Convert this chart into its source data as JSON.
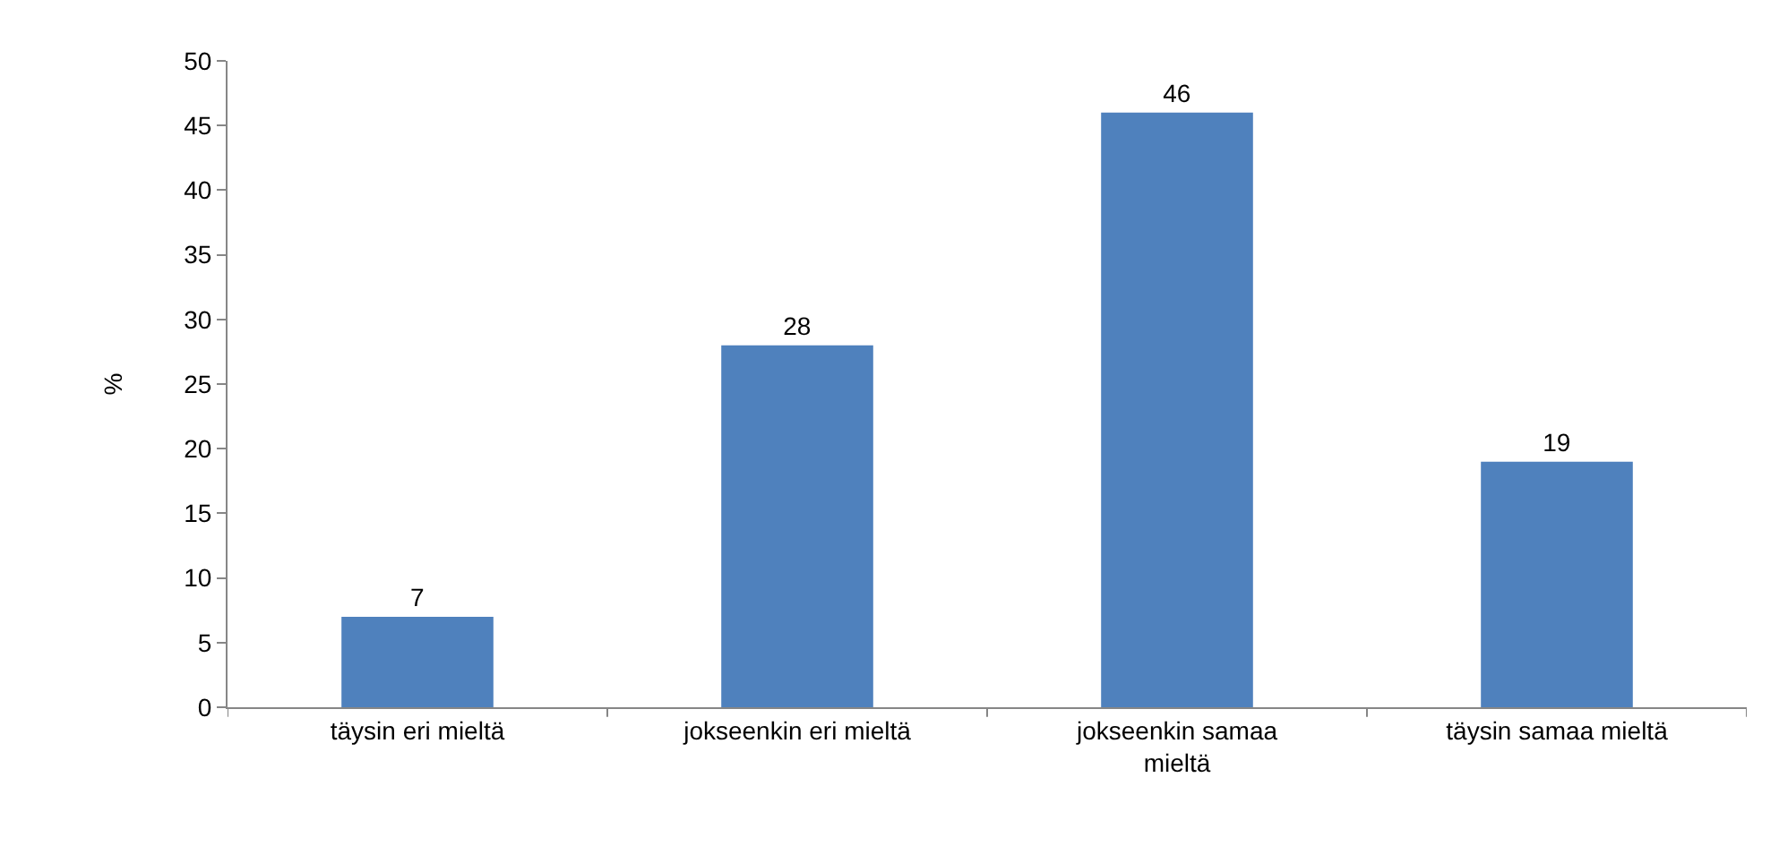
{
  "chart_data": {
    "type": "bar",
    "ylabel": "%",
    "categories": [
      "täysin eri mieltä",
      "jokseenkin eri mieltä",
      "jokseenkin samaa mieltä",
      "täysin samaa mieltä"
    ],
    "values": [
      7,
      28,
      46,
      19
    ],
    "color": "#4f81bd",
    "ylim": [
      0,
      50
    ],
    "yticks": [
      0,
      5,
      10,
      15,
      20,
      25,
      30,
      35,
      40,
      45,
      50
    ],
    "data_labels": true
  }
}
